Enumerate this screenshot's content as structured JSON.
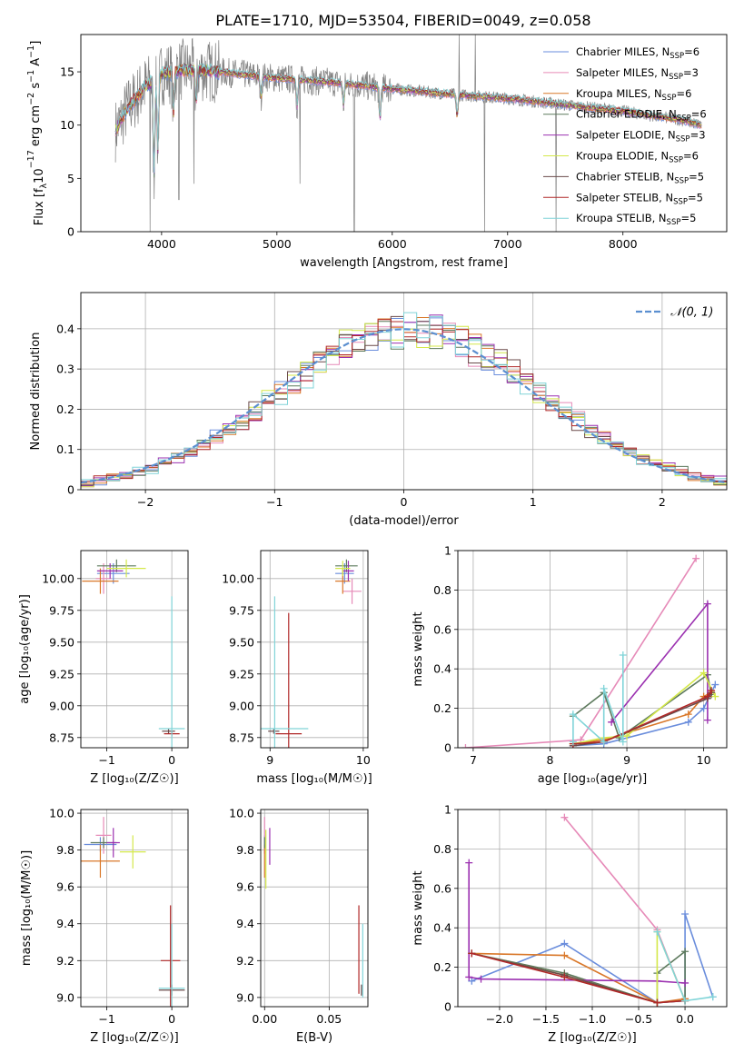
{
  "figure": {
    "title": "PLATE=1710, MJD=53504, FIBERID=0049, z=0.058"
  },
  "series_meta": [
    {
      "name": "Chabrier MILES, N$_{SSP}$=6",
      "label": "Chabrier MILES, N",
      "sub": "SSP",
      "suffix": "=6",
      "color": "#6a8ddc"
    },
    {
      "name": "Salpeter MILES, N$_{SSP}$=3",
      "label": "Salpeter MILES, N",
      "sub": "SSP",
      "suffix": "=3",
      "color": "#e68ab8"
    },
    {
      "name": "Kroupa MILES, N$_{SSP}$=6",
      "label": "Kroupa MILES, N",
      "sub": "SSP",
      "suffix": "=6",
      "color": "#d9782a"
    },
    {
      "name": "Chabrier ELODIE, N$_{SSP}$=6",
      "label": "Chabrier ELODIE, N",
      "sub": "SSP",
      "suffix": "=6",
      "color": "#5d7a5d"
    },
    {
      "name": "Salpeter ELODIE, N$_{SSP}$=3",
      "label": "Salpeter ELODIE, N",
      "sub": "SSP",
      "suffix": "=3",
      "color": "#9b30b0"
    },
    {
      "name": "Kroupa ELODIE, N$_{SSP}$=6",
      "label": "Kroupa ELODIE, N",
      "sub": "SSP",
      "suffix": "=6",
      "color": "#d4e84a"
    },
    {
      "name": "Chabrier STELIB, N$_{SSP}$=5",
      "label": "Chabrier STELIB, N",
      "sub": "SSP",
      "suffix": "=5",
      "color": "#6a4a4a"
    },
    {
      "name": "Salpeter STELIB, N$_{SSP}$=5",
      "label": "Salpeter STELIB, N",
      "sub": "SSP",
      "suffix": "=5",
      "color": "#b02828"
    },
    {
      "name": "Kroupa STELIB, N$_{SSP}$=5",
      "label": "Kroupa STELIB, N",
      "sub": "SSP",
      "suffix": "=5",
      "color": "#80d4d8"
    }
  ],
  "chart_data": [
    {
      "id": "spectrum",
      "type": "line",
      "title": "PLATE=1710, MJD=53504, FIBERID=0049, z=0.058",
      "xlabel": "wavelength [Angstrom, rest frame]",
      "ylabel": "Flux [f_λ10⁻¹⁷ erg cm⁻² s⁻¹ A⁻¹]",
      "ylabel_parts": {
        "a": "Flux [f",
        "b": "λ",
        "c": "10",
        "d": "−17",
        "e": " erg cm",
        "f": "−2",
        "g": " s",
        "h": "−1",
        "i": " A",
        "j": "−1",
        "k": "]"
      },
      "xlim": [
        3300,
        8900
      ],
      "ylim": [
        0,
        18.5
      ],
      "xticks": [
        4000,
        5000,
        6000,
        7000,
        8000
      ],
      "yticks": [
        0,
        5,
        10,
        15
      ],
      "grid": false,
      "legend": "upper right",
      "data_color": "#808080",
      "data_x_range": [
        3600,
        8680
      ],
      "continuum_knots": {
        "x": [
          3600,
          3700,
          3850,
          4000,
          4200,
          4500,
          5000,
          5500,
          6000,
          6500,
          7000,
          7500,
          8000,
          8500,
          8680
        ],
        "y": [
          9.5,
          11.5,
          13.5,
          14.8,
          15.2,
          15.0,
          14.4,
          14.0,
          13.4,
          12.9,
          12.5,
          11.9,
          11.3,
          10.5,
          10.0
        ]
      },
      "absorption_features": [
        {
          "x": 3934,
          "depth": 9
        },
        {
          "x": 3968,
          "depth": 7
        },
        {
          "x": 4102,
          "depth": 4
        },
        {
          "x": 4300,
          "depth": 3
        },
        {
          "x": 4861,
          "depth": 2
        },
        {
          "x": 5175,
          "depth": 2.5
        },
        {
          "x": 5577,
          "depth": 2
        },
        {
          "x": 5893,
          "depth": 3
        },
        {
          "x": 6563,
          "depth": 2
        }
      ],
      "spikes": [
        {
          "x": 3900,
          "y": 0
        },
        {
          "x": 4150,
          "y": 3.0
        },
        {
          "x": 4280,
          "y": 4.5
        },
        {
          "x": 5200,
          "y": 4.5
        },
        {
          "x": 5670,
          "y": 0
        },
        {
          "x": 6580,
          "y": 18.5
        },
        {
          "x": 6720,
          "y": 18.5
        },
        {
          "x": 6800,
          "y": 0
        },
        {
          "x": 7420,
          "y": 0
        }
      ]
    },
    {
      "id": "residuals",
      "type": "step",
      "xlabel": "(data-model)/error",
      "ylabel": "Normed distribution",
      "xlim": [
        -2.5,
        2.5
      ],
      "ylim": [
        0,
        0.49
      ],
      "xticks": [
        -2,
        -1,
        0,
        1,
        2
      ],
      "yticks": [
        0.0,
        0.1,
        0.2,
        0.3,
        0.4
      ],
      "grid": true,
      "legend": "upper right",
      "normal_curve": {
        "label": "𝒩(0, 1)",
        "mean": 0,
        "sigma": 1,
        "color": "#5b8fd0"
      },
      "bins": {
        "start": -2.5,
        "width": 0.1,
        "count": 50
      }
    },
    {
      "id": "age_vs_Z",
      "type": "errorbar",
      "xlabel": "Z [log₁₀(Z/Z☉)]",
      "ylabel": "age  [log₁₀(age/yr)]",
      "xlim": [
        -1.4,
        0.25
      ],
      "ylim": [
        8.67,
        10.22
      ],
      "xticks": [
        -1,
        0
      ],
      "yticks": [
        8.75,
        9.0,
        9.25,
        9.5,
        9.75,
        10.0
      ],
      "ytick_labels": [
        "8.75",
        "9.00",
        "9.25",
        "9.50",
        "9.75",
        "10.00"
      ],
      "grid": true,
      "points": [
        {
          "s": 0,
          "x": -0.9,
          "y": 10.04,
          "xerr": 0.25,
          "yerr": 0.08
        },
        {
          "s": 1,
          "x": -1.05,
          "y": 10.0,
          "xerr": 0.12,
          "yerr": 0.12
        },
        {
          "s": 2,
          "x": -1.1,
          "y": 9.98,
          "xerr": 0.28,
          "yerr": 0.1
        },
        {
          "s": 3,
          "x": -0.85,
          "y": 10.1,
          "xerr": 0.3,
          "yerr": 0.05
        },
        {
          "s": 4,
          "x": -0.95,
          "y": 10.06,
          "xerr": 0.2,
          "yerr": 0.06
        },
        {
          "s": 5,
          "x": -0.7,
          "y": 10.08,
          "xerr": 0.3,
          "yerr": 0.07
        },
        {
          "s": 6,
          "x": -0.05,
          "y": 8.8,
          "xerr": 0.1,
          "yerr": 0.02
        },
        {
          "s": 7,
          "x": 0.0,
          "y": 8.78,
          "xerr": 0.12,
          "yerr": 0.02
        },
        {
          "s": 8,
          "x": 0.0,
          "y": 8.82,
          "xerr": 0.2,
          "yerr": 1.04
        }
      ]
    },
    {
      "id": "age_vs_mass",
      "type": "errorbar",
      "xlabel": "mass [log₁₀(M/M☉)]",
      "ylabel": "",
      "xlim": [
        8.9,
        10.05
      ],
      "ylim": [
        8.67,
        10.22
      ],
      "xticks": [
        9,
        10
      ],
      "yticks": [
        8.75,
        9.0,
        9.25,
        9.5,
        9.75,
        10.0
      ],
      "ytick_labels": [
        "8.75",
        "9.00",
        "9.25",
        "9.50",
        "9.75",
        "10.00"
      ],
      "grid": true,
      "points": [
        {
          "s": 0,
          "x": 9.8,
          "y": 10.04,
          "xerr": 0.1,
          "yerr": 0.08
        },
        {
          "s": 1,
          "x": 9.88,
          "y": 9.9,
          "xerr": 0.1,
          "yerr": 0.1
        },
        {
          "s": 2,
          "x": 9.78,
          "y": 9.98,
          "xerr": 0.08,
          "yerr": 0.1
        },
        {
          "s": 3,
          "x": 9.82,
          "y": 10.1,
          "xerr": 0.12,
          "yerr": 0.05
        },
        {
          "s": 4,
          "x": 9.84,
          "y": 10.06,
          "xerr": 0.06,
          "yerr": 0.08
        },
        {
          "s": 5,
          "x": 9.78,
          "y": 10.08,
          "xerr": 0.08,
          "yerr": 0.06
        },
        {
          "s": 6,
          "x": 9.04,
          "y": 8.8,
          "xerr": 0.06,
          "yerr": 0.02
        },
        {
          "s": 7,
          "x": 9.2,
          "y": 8.78,
          "xerr": 0.14,
          "yerr": 0.95
        },
        {
          "s": 8,
          "x": 9.05,
          "y": 8.82,
          "xerr": 0.36,
          "yerr": 1.04
        }
      ]
    },
    {
      "id": "weight_vs_age",
      "type": "line",
      "xlabel": "age  [log₁₀(age/yr)]",
      "ylabel": "mass weight",
      "xlim": [
        6.8,
        10.3
      ],
      "ylim": [
        0,
        1.0
      ],
      "xticks": [
        7,
        8,
        9,
        10
      ],
      "yticks": [
        0.0,
        0.2,
        0.4,
        0.6,
        0.8,
        1.0
      ],
      "grid": true,
      "series": [
        {
          "s": 0,
          "x": [
            8.3,
            8.7,
            9.8,
            10.0,
            10.15
          ],
          "y": [
            0.01,
            0.02,
            0.13,
            0.2,
            0.32
          ]
        },
        {
          "s": 1,
          "x": [
            6.9,
            8.4,
            9.9
          ],
          "y": [
            0.0,
            0.04,
            0.96
          ]
        },
        {
          "s": 2,
          "x": [
            8.3,
            8.7,
            9.8,
            10.0,
            10.1
          ],
          "y": [
            0.02,
            0.04,
            0.17,
            0.26,
            0.28
          ]
        },
        {
          "s": 3,
          "x": [
            8.3,
            8.7,
            8.9,
            10.05,
            10.1
          ],
          "y": [
            0.16,
            0.28,
            0.05,
            0.37,
            0.27
          ]
        },
        {
          "s": 4,
          "x": [
            8.8,
            10.05,
            10.05
          ],
          "y": [
            0.13,
            0.73,
            0.14
          ]
        },
        {
          "s": 5,
          "x": [
            8.3,
            8.7,
            9.0,
            10.0,
            10.15
          ],
          "y": [
            0.02,
            0.05,
            0.06,
            0.38,
            0.26
          ]
        },
        {
          "s": 6,
          "x": [
            8.3,
            8.7,
            10.05,
            10.1
          ],
          "y": [
            0.01,
            0.03,
            0.25,
            0.28
          ]
        },
        {
          "s": 7,
          "x": [
            8.3,
            8.7,
            10.05,
            10.1
          ],
          "y": [
            0.02,
            0.03,
            0.26,
            0.29
          ]
        },
        {
          "s": 8,
          "x": [
            8.3,
            8.3,
            8.7,
            8.7,
            8.95,
            8.95
          ],
          "y": [
            0.03,
            0.17,
            0.03,
            0.3,
            0.03,
            0.47
          ]
        }
      ]
    },
    {
      "id": "mass_vs_Z",
      "type": "errorbar",
      "xlabel": "Z [log₁₀(Z/Z☉)]",
      "ylabel": "mass [log₁₀(M/M☉)]",
      "xlim": [
        -1.4,
        0.25
      ],
      "ylim": [
        8.95,
        10.02
      ],
      "xticks": [
        -1,
        0
      ],
      "yticks": [
        9.0,
        9.2,
        9.4,
        9.6,
        9.8,
        10.0
      ],
      "ytick_labels": [
        "9.0",
        "9.2",
        "9.4",
        "9.6",
        "9.8",
        "10.0"
      ],
      "grid": true,
      "points": [
        {
          "s": 0,
          "x": -1.1,
          "y": 9.83,
          "xerr": 0.25,
          "yerr": 0.04
        },
        {
          "s": 1,
          "x": -1.05,
          "y": 9.88,
          "xerr": 0.12,
          "yerr": 0.1
        },
        {
          "s": 2,
          "x": -1.1,
          "y": 9.74,
          "xerr": 0.3,
          "yerr": 0.09
        },
        {
          "s": 3,
          "x": -1.05,
          "y": 9.84,
          "xerr": 0.2,
          "yerr": 0.03
        },
        {
          "s": 4,
          "x": -0.9,
          "y": 9.84,
          "xerr": 0.1,
          "yerr": 0.08
        },
        {
          "s": 5,
          "x": -0.6,
          "y": 9.79,
          "xerr": 0.2,
          "yerr": 0.09
        },
        {
          "s": 6,
          "x": 0.0,
          "y": 9.04,
          "xerr": 0.2,
          "yerr": 0.03
        },
        {
          "s": 7,
          "x": -0.02,
          "y": 9.2,
          "xerr": 0.15,
          "yerr": 0.3
        },
        {
          "s": 8,
          "x": 0.0,
          "y": 9.05,
          "xerr": 0.2,
          "yerr": 0.35
        }
      ]
    },
    {
      "id": "mass_vs_ebv",
      "type": "errorbar",
      "xlabel": "E(B-V)",
      "ylabel": "",
      "xlim": [
        -0.003,
        0.08
      ],
      "ylim": [
        8.95,
        10.02
      ],
      "xticks": [
        0.0,
        0.05
      ],
      "xtick_labels": [
        "0.00",
        "0.05"
      ],
      "yticks": [
        9.0,
        9.2,
        9.4,
        9.6,
        9.8,
        10.0
      ],
      "ytick_labels": [
        "9.0",
        "9.2",
        "9.4",
        "9.6",
        "9.8",
        "10.0"
      ],
      "grid": true,
      "points": [
        {
          "s": 0,
          "x": 0.0,
          "y": 9.83,
          "xerr": 0,
          "yerr": 0.05
        },
        {
          "s": 1,
          "x": 0.0,
          "y": 9.88,
          "xerr": 0,
          "yerr": 0.1
        },
        {
          "s": 2,
          "x": 0.0,
          "y": 9.74,
          "xerr": 0,
          "yerr": 0.09
        },
        {
          "s": 3,
          "x": 0.0,
          "y": 9.84,
          "xerr": 0,
          "yerr": 0.03
        },
        {
          "s": 4,
          "x": 0.004,
          "y": 9.82,
          "xerr": 0,
          "yerr": 0.1
        },
        {
          "s": 5,
          "x": 0.001,
          "y": 9.75,
          "xerr": 0,
          "yerr": 0.16
        },
        {
          "s": 6,
          "x": 0.075,
          "y": 9.04,
          "xerr": 0,
          "yerr": 0.03
        },
        {
          "s": 7,
          "x": 0.073,
          "y": 9.26,
          "xerr": 0,
          "yerr": 0.24
        },
        {
          "s": 8,
          "x": 0.076,
          "y": 9.2,
          "xerr": 0,
          "yerr": 0.2
        }
      ]
    },
    {
      "id": "weight_vs_Z",
      "type": "line",
      "xlabel": "Z [log₁₀(Z/Z☉)]",
      "ylabel": "mass weight",
      "xlim": [
        -2.45,
        0.45
      ],
      "ylim": [
        0,
        1.0
      ],
      "xticks": [
        -2.0,
        -1.5,
        -1.0,
        -0.5,
        0.0
      ],
      "xtick_labels": [
        "−2.0",
        "−1.5",
        "−1.0",
        "−0.5",
        "0.0"
      ],
      "yticks": [
        0.0,
        0.2,
        0.4,
        0.6,
        0.8,
        1.0
      ],
      "grid": true,
      "series": [
        {
          "s": 0,
          "x": [
            -2.3,
            -1.3,
            -0.3,
            0.0,
            0.0,
            0.3
          ],
          "y": [
            0.13,
            0.32,
            0.02,
            0.03,
            0.47,
            0.05
          ]
        },
        {
          "s": 1,
          "x": [
            -1.3,
            -0.3,
            0.0
          ],
          "y": [
            0.96,
            0.39,
            0.03
          ]
        },
        {
          "s": 2,
          "x": [
            -2.3,
            -1.3,
            -0.3,
            0.0
          ],
          "y": [
            0.27,
            0.26,
            0.02,
            0.04
          ]
        },
        {
          "s": 3,
          "x": [
            -2.3,
            -1.3,
            -0.3,
            -0.3,
            0.0,
            0.0
          ],
          "y": [
            0.27,
            0.17,
            0.02,
            0.17,
            0.28,
            0.03
          ]
        },
        {
          "s": 4,
          "x": [
            -2.33,
            -2.33,
            -2.2,
            -0.3,
            0.0
          ],
          "y": [
            0.73,
            0.15,
            0.14,
            0.13,
            0.12
          ]
        },
        {
          "s": 5,
          "x": [
            -2.3,
            -1.3,
            -0.3,
            -0.3,
            0.0
          ],
          "y": [
            0.27,
            0.16,
            0.02,
            0.38,
            0.03
          ]
        },
        {
          "s": 6,
          "x": [
            -2.3,
            -1.3,
            -0.3,
            0.0
          ],
          "y": [
            0.27,
            0.16,
            0.02,
            0.03
          ]
        },
        {
          "s": 7,
          "x": [
            -2.3,
            -1.3,
            -0.3,
            0.0
          ],
          "y": [
            0.27,
            0.15,
            0.02,
            0.03
          ]
        },
        {
          "s": 8,
          "x": [
            -0.3,
            0.0,
            0.3
          ],
          "y": [
            0.38,
            0.03,
            0.05
          ]
        }
      ]
    }
  ]
}
